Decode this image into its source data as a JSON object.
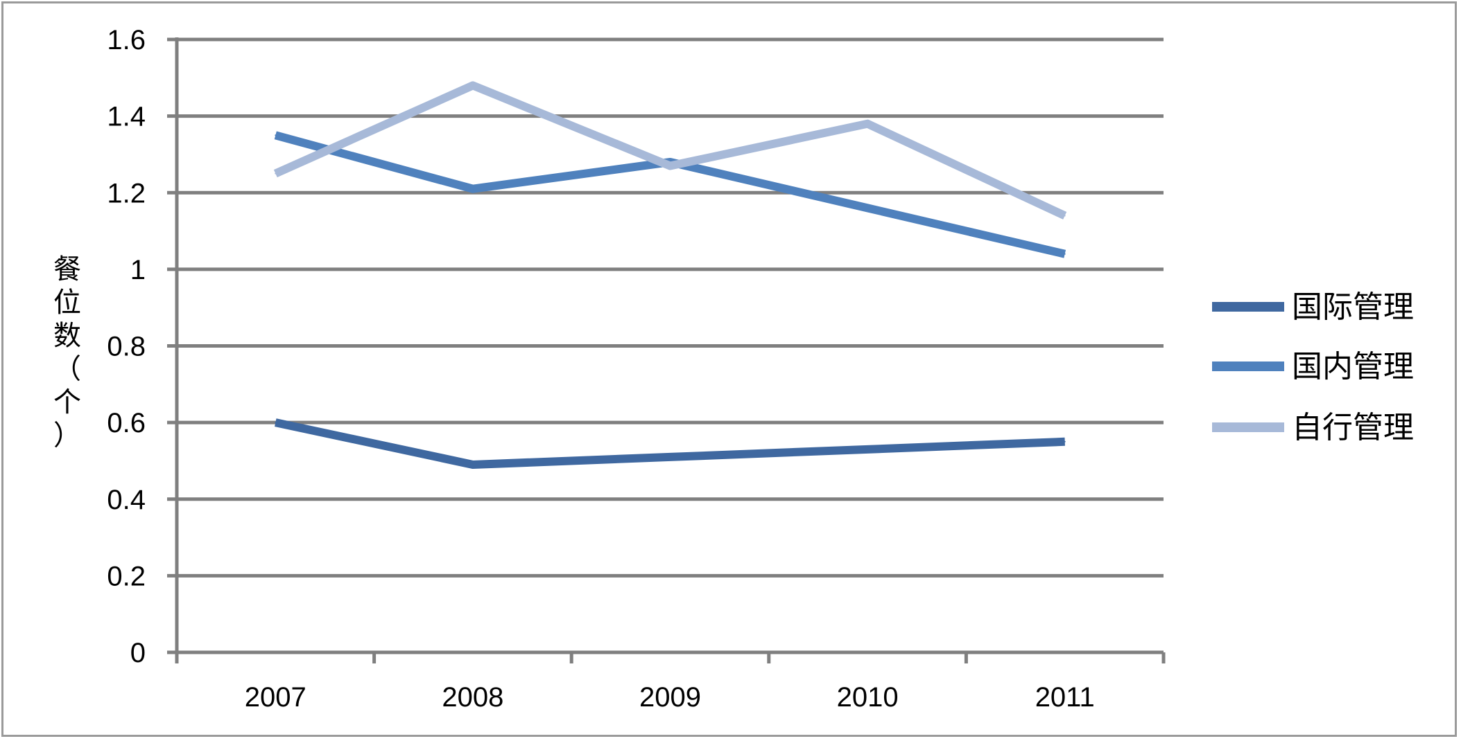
{
  "chart_data": {
    "type": "line",
    "title": "",
    "xlabel": "",
    "ylabel": "餐位数（个）",
    "categories": [
      "2007",
      "2008",
      "2009",
      "2010",
      "2011"
    ],
    "ylim": [
      0,
      1.6
    ],
    "yticks": [
      "0",
      "0.2",
      "0.4",
      "0.6",
      "0.8",
      "1",
      "1.2",
      "1.4",
      "1.6"
    ],
    "grid": true,
    "legend_position": "right",
    "series": [
      {
        "name": "国际管理",
        "values": [
          0.6,
          0.49,
          0.51,
          0.53,
          0.55
        ],
        "color": "#3f68a0"
      },
      {
        "name": "国内管理",
        "values": [
          1.35,
          1.21,
          1.28,
          1.16,
          1.04
        ],
        "color": "#4f81bd"
      },
      {
        "name": "自行管理",
        "values": [
          1.25,
          1.48,
          1.27,
          1.38,
          1.14
        ],
        "color": "#a7b9d8"
      }
    ]
  }
}
